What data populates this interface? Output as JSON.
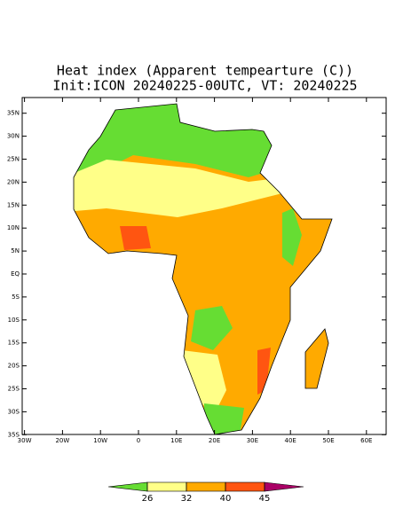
{
  "header": {
    "title": "Heat index (Apparent tempearture (C))",
    "subtitle": "Init:ICON 20240225-00UTC, VT: 20240225"
  },
  "map": {
    "xticks": [
      {
        "value": -30,
        "label": "30W"
      },
      {
        "value": -20,
        "label": "20W"
      },
      {
        "value": -10,
        "label": "10W"
      },
      0,
      {
        "value": 10,
        "label": "10E"
      },
      {
        "value": 20,
        "label": "20E"
      },
      {
        "value": 30,
        "label": "30E"
      },
      {
        "value": 40,
        "label": "40E"
      },
      {
        "value": 50,
        "label": "50E"
      },
      {
        "value": 60,
        "label": "60E"
      }
    ],
    "yticks": [
      {
        "value": 35,
        "label": "35N"
      },
      {
        "value": 30,
        "label": "30N"
      },
      {
        "value": 25,
        "label": "25N"
      },
      {
        "value": 20,
        "label": "20N"
      },
      {
        "value": 15,
        "label": "15N"
      },
      {
        "value": 10,
        "label": "10N"
      },
      {
        "value": 5,
        "label": "5N"
      },
      {
        "value": 0,
        "label": "EQ"
      },
      {
        "value": -5,
        "label": "5S"
      },
      {
        "value": -10,
        "label": "10S"
      },
      {
        "value": -15,
        "label": "15S"
      },
      {
        "value": -20,
        "label": "20S"
      },
      {
        "value": -25,
        "label": "25S"
      },
      {
        "value": -30,
        "label": "30S"
      },
      {
        "value": -35,
        "label": "35S"
      }
    ]
  },
  "colorbar": {
    "ticks": [
      26,
      32,
      40,
      45
    ],
    "colors": [
      "#66dd33",
      "#ffff88",
      "#ffaa00",
      "#ff5511",
      "#aa0066"
    ]
  }
}
